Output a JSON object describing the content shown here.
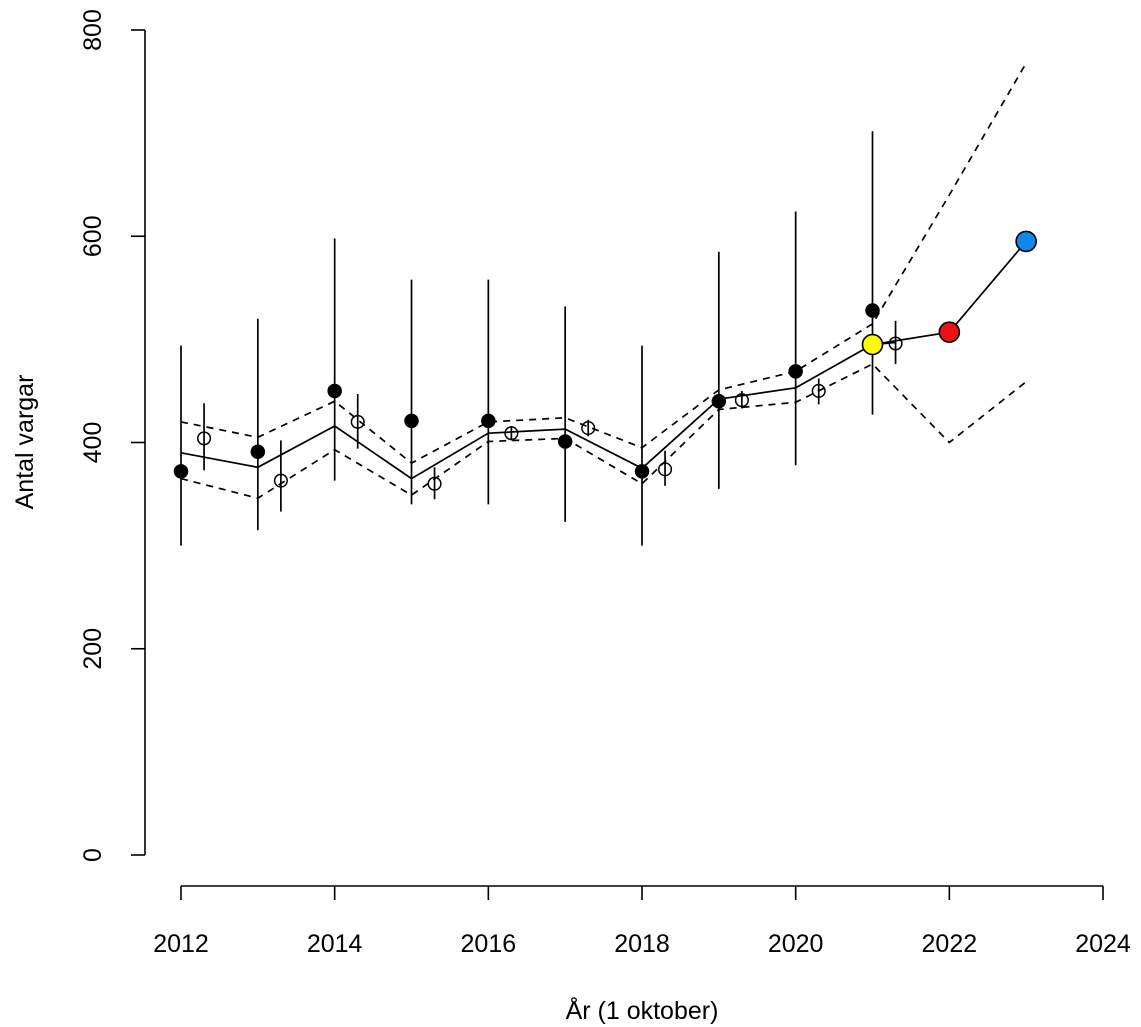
{
  "chart_data": {
    "type": "scatter",
    "title": "",
    "xlabel": "År (1 oktober)",
    "ylabel": "Antal vargar",
    "xlim": [
      2012,
      2024
    ],
    "ylim": [
      0,
      800
    ],
    "x_ticks": [
      2012,
      2014,
      2016,
      2018,
      2020,
      2022,
      2024
    ],
    "y_ticks": [
      0,
      200,
      400,
      600,
      800
    ],
    "grid": false,
    "legend": "none",
    "series": [
      {
        "kind": "filled-points-with-intervals",
        "color": "#000000",
        "points": [
          {
            "x": 2012,
            "y": 372,
            "lo": 300,
            "hi": 494
          },
          {
            "x": 2013,
            "y": 391,
            "lo": 315,
            "hi": 520
          },
          {
            "x": 2014,
            "y": 450,
            "lo": 363,
            "hi": 598
          },
          {
            "x": 2015,
            "y": 421,
            "lo": 340,
            "hi": 558
          },
          {
            "x": 2016,
            "y": 421,
            "lo": 340,
            "hi": 558
          },
          {
            "x": 2017,
            "y": 401,
            "lo": 323,
            "hi": 532
          },
          {
            "x": 2018,
            "y": 372,
            "lo": 300,
            "hi": 494
          },
          {
            "x": 2019,
            "y": 440,
            "lo": 355,
            "hi": 585
          },
          {
            "x": 2020,
            "y": 469,
            "lo": 378,
            "hi": 624
          },
          {
            "x": 2021,
            "y": 528,
            "lo": 427,
            "hi": 702
          }
        ]
      },
      {
        "kind": "open-points-with-intervals",
        "color": "#000000",
        "points": [
          {
            "x": 2012.3,
            "y": 404,
            "lo": 373,
            "hi": 438
          },
          {
            "x": 2013.3,
            "y": 363,
            "lo": 333,
            "hi": 402
          },
          {
            "x": 2014.3,
            "y": 420,
            "lo": 394,
            "hi": 447
          },
          {
            "x": 2015.3,
            "y": 360,
            "lo": 345,
            "hi": 376
          },
          {
            "x": 2016.3,
            "y": 409,
            "lo": 402,
            "hi": 416
          },
          {
            "x": 2017.3,
            "y": 414,
            "lo": 406,
            "hi": 422
          },
          {
            "x": 2018.3,
            "y": 374,
            "lo": 358,
            "hi": 392
          },
          {
            "x": 2019.3,
            "y": 441,
            "lo": 433,
            "hi": 450
          },
          {
            "x": 2020.3,
            "y": 450,
            "lo": 437,
            "hi": 462
          },
          {
            "x": 2021.3,
            "y": 496,
            "lo": 476,
            "hi": 518
          }
        ]
      },
      {
        "kind": "solid-line",
        "color": "#000000",
        "x": [
          2012,
          2013,
          2014,
          2015,
          2016,
          2017,
          2018,
          2019,
          2020,
          2021,
          2021.3
        ],
        "y": [
          390,
          376,
          416,
          365,
          409,
          413,
          375,
          442,
          453,
          495,
          497
        ]
      },
      {
        "kind": "dashed-line",
        "color": "#000000",
        "x": [
          2012,
          2013,
          2014,
          2015,
          2016,
          2017,
          2018,
          2019,
          2020,
          2021,
          2022,
          2023
        ],
        "y": [
          420,
          405,
          440,
          380,
          420,
          424,
          395,
          451,
          469,
          515,
          640,
          768
        ]
      },
      {
        "kind": "dashed-line",
        "color": "#000000",
        "x": [
          2012,
          2013,
          2014,
          2015,
          2016,
          2017,
          2018,
          2019,
          2020,
          2021,
          2022,
          2023
        ],
        "y": [
          365,
          346,
          393,
          349,
          401,
          404,
          360,
          432,
          439,
          476,
          400,
          459
        ]
      },
      {
        "kind": "forecast-line",
        "color": "#000000",
        "x": [
          2021,
          2022,
          2023
        ],
        "y": [
          495,
          507,
          595
        ]
      }
    ],
    "highlight_points": [
      {
        "x": 2021,
        "y": 495,
        "color": "#FFFF00"
      },
      {
        "x": 2022,
        "y": 507,
        "color": "#EE1111"
      },
      {
        "x": 2023,
        "y": 595,
        "color": "#1188EE"
      }
    ]
  }
}
